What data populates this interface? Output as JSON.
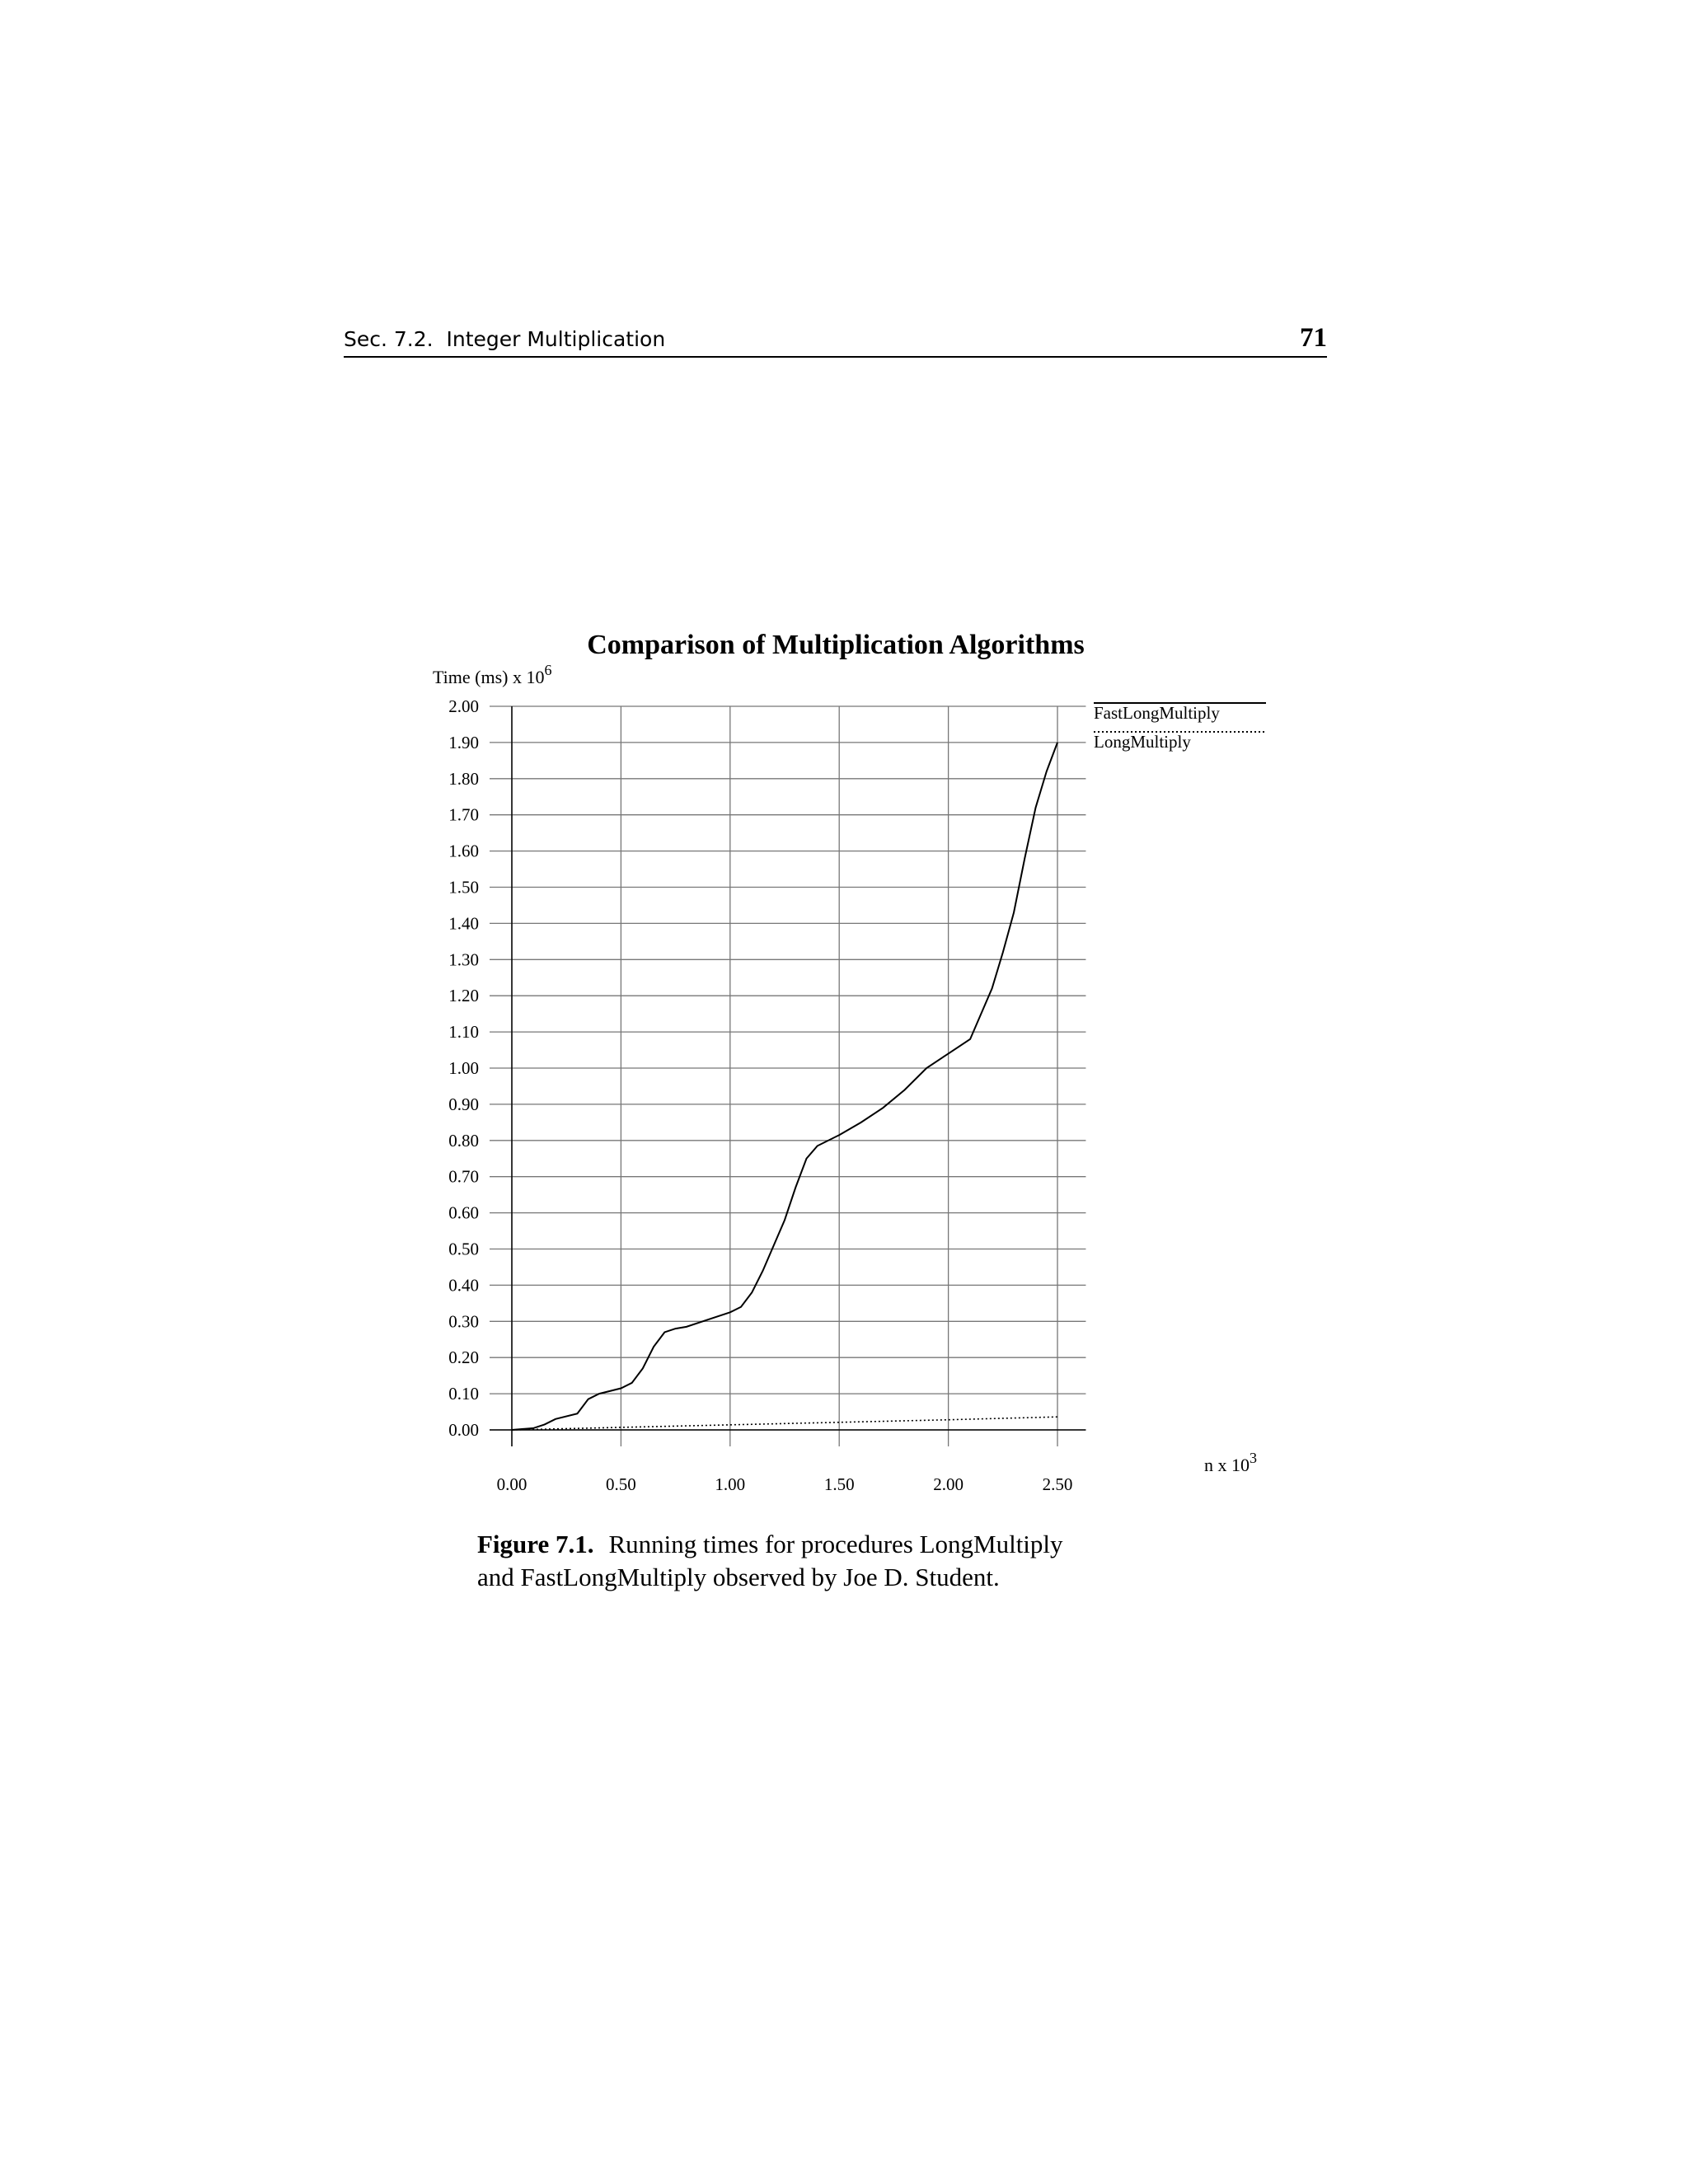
{
  "header": {
    "section": "Sec. 7.2.  Integer Multiplication",
    "page": "71"
  },
  "chart_data": {
    "type": "line",
    "title": "Comparison of Multiplication Algorithms",
    "y_label": "Time (ms) x 10",
    "y_label_exponent": "6",
    "x_label": "n x 10",
    "x_label_exponent": "3",
    "x": [
      0,
      0.1,
      0.15,
      0.2,
      0.3,
      0.35,
      0.4,
      0.5,
      0.55,
      0.6,
      0.65,
      0.7,
      0.75,
      0.8,
      0.9,
      1.0,
      1.05,
      1.1,
      1.15,
      1.2,
      1.25,
      1.3,
      1.35,
      1.4,
      1.5,
      1.6,
      1.7,
      1.8,
      1.9,
      2.0,
      2.1,
      2.15,
      2.2,
      2.25,
      2.3,
      2.35,
      2.4,
      2.45,
      2.5
    ],
    "series": [
      {
        "name": "FastLongMultiply",
        "color": "#000000",
        "line_style": "solid",
        "values": [
          0,
          0.005,
          0.015,
          0.03,
          0.045,
          0.085,
          0.1,
          0.115,
          0.13,
          0.17,
          0.23,
          0.27,
          0.28,
          0.285,
          0.305,
          0.325,
          0.34,
          0.38,
          0.44,
          0.51,
          0.58,
          0.67,
          0.75,
          0.785,
          0.815,
          0.85,
          0.89,
          0.94,
          1.0,
          1.04,
          1.08,
          1.15,
          1.22,
          1.32,
          1.43,
          1.58,
          1.72,
          1.82,
          1.9
        ]
      },
      {
        "name": "LongMultiply",
        "color": "#000000",
        "line_style": "dotted",
        "values": [
          0,
          0.0014,
          0.002,
          0.0028,
          0.0042,
          0.0049,
          0.0056,
          0.007,
          0.0077,
          0.0084,
          0.0091,
          0.0098,
          0.0105,
          0.0112,
          0.0126,
          0.014,
          0.0147,
          0.0154,
          0.0161,
          0.0168,
          0.0175,
          0.0182,
          0.0189,
          0.0196,
          0.021,
          0.0224,
          0.0238,
          0.0252,
          0.0266,
          0.028,
          0.0296,
          0.0304,
          0.0312,
          0.032,
          0.0328,
          0.0336,
          0.0344,
          0.0352,
          0.036
        ]
      }
    ],
    "xlim": [
      0,
      2.63
    ],
    "ylim": [
      0,
      2
    ],
    "xticks": [
      {
        "value": 0,
        "label": "0.00"
      },
      {
        "value": 0.5,
        "label": "0.50"
      },
      {
        "value": 1,
        "label": "1.00"
      },
      {
        "value": 1.5,
        "label": "1.50"
      },
      {
        "value": 2,
        "label": "2.00"
      },
      {
        "value": 2.5,
        "label": "2.50"
      }
    ],
    "yticks": [
      {
        "value": 0,
        "label": "0.00"
      },
      {
        "value": 0.1,
        "label": "0.10"
      },
      {
        "value": 0.2,
        "label": "0.20"
      },
      {
        "value": 0.3,
        "label": "0.30"
      },
      {
        "value": 0.4,
        "label": "0.40"
      },
      {
        "value": 0.5,
        "label": "0.50"
      },
      {
        "value": 0.6,
        "label": "0.60"
      },
      {
        "value": 0.7,
        "label": "0.70"
      },
      {
        "value": 0.8,
        "label": "0.80"
      },
      {
        "value": 0.9,
        "label": "0.90"
      },
      {
        "value": 1,
        "label": "1.00"
      },
      {
        "value": 1.1,
        "label": "1.10"
      },
      {
        "value": 1.2,
        "label": "1.20"
      },
      {
        "value": 1.3,
        "label": "1.30"
      },
      {
        "value": 1.4,
        "label": "1.40"
      },
      {
        "value": 1.5,
        "label": "1.50"
      },
      {
        "value": 1.6,
        "label": "1.60"
      },
      {
        "value": 1.7,
        "label": "1.70"
      },
      {
        "value": 1.8,
        "label": "1.80"
      },
      {
        "value": 1.9,
        "label": "1.90"
      },
      {
        "value": 2,
        "label": "2.00"
      }
    ],
    "grid": true,
    "legend": "top-right"
  },
  "caption": {
    "label": "Figure 7.1.",
    "text": "Running times for procedures LongMultiply",
    "text_line2": "and FastLongMultiply observed by Joe D. Student."
  }
}
